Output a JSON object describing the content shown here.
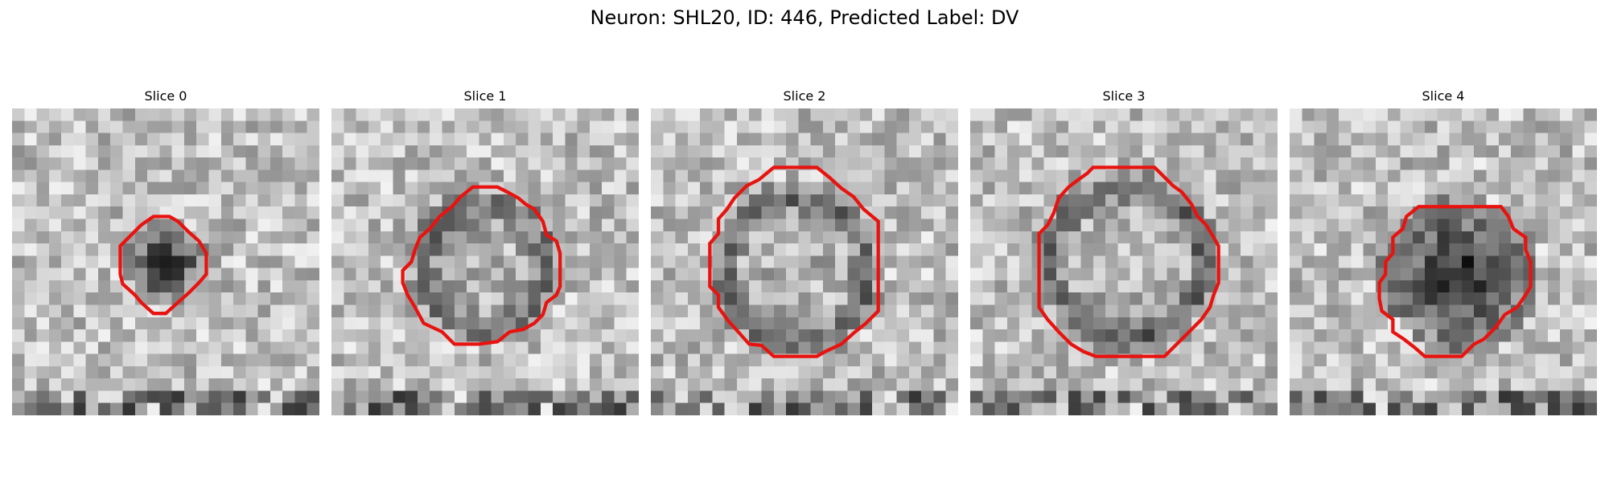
{
  "figure": {
    "title": "Neuron: SHL20, ID: 446, Predicted Label: DV"
  },
  "colors": {
    "contour": "#e8130f",
    "background": "#ffffff"
  },
  "panels": [
    {
      "title": "Slice 0",
      "grid_size": 25,
      "dark_blob": {
        "cx": 12.5,
        "cy": 12.5,
        "r": 3.2,
        "mode": "center"
      },
      "outline": [
        [
          11.5,
          8.8
        ],
        [
          12.8,
          8.8
        ],
        [
          13.5,
          9.2
        ],
        [
          14.3,
          10.0
        ],
        [
          15.2,
          10.8
        ],
        [
          15.8,
          11.8
        ],
        [
          15.8,
          13.5
        ],
        [
          15.2,
          14.2
        ],
        [
          14.4,
          15.0
        ],
        [
          13.5,
          15.8
        ],
        [
          12.5,
          16.7
        ],
        [
          11.5,
          16.7
        ],
        [
          10.5,
          15.8
        ],
        [
          10.0,
          15.2
        ],
        [
          9.0,
          14.3
        ],
        [
          8.8,
          13.5
        ],
        [
          8.8,
          11.2
        ],
        [
          9.5,
          10.5
        ],
        [
          10.5,
          9.5
        ]
      ]
    },
    {
      "title": "Slice 1",
      "grid_size": 25,
      "dark_blob": {
        "cx": 12.5,
        "cy": 12.8,
        "r": 5.8,
        "mode": "ring"
      },
      "outline": [
        [
          11.5,
          6.4
        ],
        [
          13.5,
          6.4
        ],
        [
          14.3,
          6.8
        ],
        [
          15.2,
          7.3
        ],
        [
          15.8,
          7.8
        ],
        [
          16.5,
          8.2
        ],
        [
          17.2,
          9.2
        ],
        [
          17.5,
          10.3
        ],
        [
          18.3,
          10.8
        ],
        [
          18.6,
          11.8
        ],
        [
          18.6,
          14.5
        ],
        [
          18.3,
          15.2
        ],
        [
          17.5,
          15.8
        ],
        [
          17.2,
          16.8
        ],
        [
          16.5,
          17.5
        ],
        [
          15.6,
          18.0
        ],
        [
          14.5,
          18.2
        ],
        [
          13.5,
          19.0
        ],
        [
          12.0,
          19.2
        ],
        [
          10.0,
          19.2
        ],
        [
          9.0,
          18.2
        ],
        [
          7.5,
          17.5
        ],
        [
          6.8,
          16.2
        ],
        [
          6.2,
          15.2
        ],
        [
          5.8,
          14.2
        ],
        [
          5.8,
          13.2
        ],
        [
          6.5,
          12.5
        ],
        [
          6.8,
          11.5
        ],
        [
          7.2,
          10.5
        ],
        [
          8.0,
          9.8
        ],
        [
          8.8,
          8.8
        ],
        [
          9.8,
          8.0
        ],
        [
          10.5,
          7.2
        ]
      ]
    },
    {
      "title": "Slice 2",
      "grid_size": 25,
      "dark_blob": {
        "cx": 11.8,
        "cy": 13.2,
        "r": 6.8,
        "mode": "ring"
      },
      "outline": [
        [
          10.0,
          4.8
        ],
        [
          13.5,
          4.8
        ],
        [
          14.5,
          5.6
        ],
        [
          15.5,
          6.5
        ],
        [
          16.5,
          7.2
        ],
        [
          17.3,
          8.2
        ],
        [
          18.5,
          9.2
        ],
        [
          18.5,
          16.5
        ],
        [
          17.5,
          17.5
        ],
        [
          16.5,
          18.3
        ],
        [
          15.5,
          19.2
        ],
        [
          14.2,
          19.8
        ],
        [
          13.5,
          20.2
        ],
        [
          12.5,
          20.2
        ],
        [
          10.0,
          20.2
        ],
        [
          9.0,
          19.3
        ],
        [
          8.0,
          19.2
        ],
        [
          7.2,
          18.3
        ],
        [
          6.3,
          17.3
        ],
        [
          5.5,
          16.2
        ],
        [
          5.5,
          15.2
        ],
        [
          4.8,
          14.5
        ],
        [
          4.8,
          11.0
        ],
        [
          5.5,
          10.2
        ],
        [
          5.5,
          9.0
        ],
        [
          6.2,
          8.2
        ],
        [
          6.8,
          7.3
        ],
        [
          7.8,
          6.3
        ],
        [
          8.8,
          5.8
        ]
      ]
    },
    {
      "title": "Slice 3",
      "grid_size": 25,
      "dark_blob": {
        "cx": 12.8,
        "cy": 12.5,
        "r": 7.2,
        "mode": "ring"
      },
      "outline": [
        [
          10.0,
          4.8
        ],
        [
          15.0,
          4.8
        ],
        [
          15.8,
          5.6
        ],
        [
          16.5,
          6.3
        ],
        [
          17.2,
          6.8
        ],
        [
          18.0,
          7.8
        ],
        [
          18.5,
          8.8
        ],
        [
          19.2,
          9.5
        ],
        [
          19.8,
          10.5
        ],
        [
          20.2,
          11.2
        ],
        [
          20.2,
          14.2
        ],
        [
          19.8,
          15.2
        ],
        [
          19.5,
          16.2
        ],
        [
          18.8,
          17.2
        ],
        [
          17.8,
          18.2
        ],
        [
          16.8,
          19.2
        ],
        [
          15.8,
          20.2
        ],
        [
          14.8,
          20.2
        ],
        [
          10.2,
          20.2
        ],
        [
          9.2,
          19.8
        ],
        [
          8.2,
          19.2
        ],
        [
          7.2,
          18.2
        ],
        [
          6.3,
          17.2
        ],
        [
          5.6,
          16.2
        ],
        [
          5.6,
          15.2
        ],
        [
          5.6,
          10.2
        ],
        [
          6.3,
          9.5
        ],
        [
          6.8,
          8.5
        ],
        [
          7.2,
          7.3
        ],
        [
          8.0,
          6.4
        ],
        [
          8.8,
          5.8
        ],
        [
          9.5,
          5.3
        ]
      ]
    },
    {
      "title": "Slice 4",
      "grid_size": 25,
      "dark_blob": {
        "cx": 13.8,
        "cy": 13.5,
        "r": 6.5,
        "mode": "center"
      },
      "outline": [
        [
          10.5,
          8.0
        ],
        [
          17.2,
          8.0
        ],
        [
          17.8,
          8.8
        ],
        [
          18.2,
          9.8
        ],
        [
          19.2,
          10.5
        ],
        [
          19.2,
          11.5
        ],
        [
          19.6,
          12.5
        ],
        [
          19.6,
          14.5
        ],
        [
          19.2,
          15.2
        ],
        [
          18.5,
          16.2
        ],
        [
          17.5,
          16.8
        ],
        [
          16.8,
          17.8
        ],
        [
          15.8,
          18.8
        ],
        [
          15.0,
          19.2
        ],
        [
          14.0,
          20.2
        ],
        [
          11.0,
          20.2
        ],
        [
          10.2,
          19.5
        ],
        [
          9.3,
          18.8
        ],
        [
          8.4,
          18.2
        ],
        [
          8.4,
          17.2
        ],
        [
          7.5,
          16.5
        ],
        [
          7.3,
          15.5
        ],
        [
          7.3,
          14.2
        ],
        [
          7.8,
          13.5
        ],
        [
          7.8,
          12.5
        ],
        [
          8.4,
          11.8
        ],
        [
          8.4,
          10.5
        ],
        [
          9.2,
          9.8
        ],
        [
          9.5,
          8.8
        ]
      ]
    }
  ]
}
